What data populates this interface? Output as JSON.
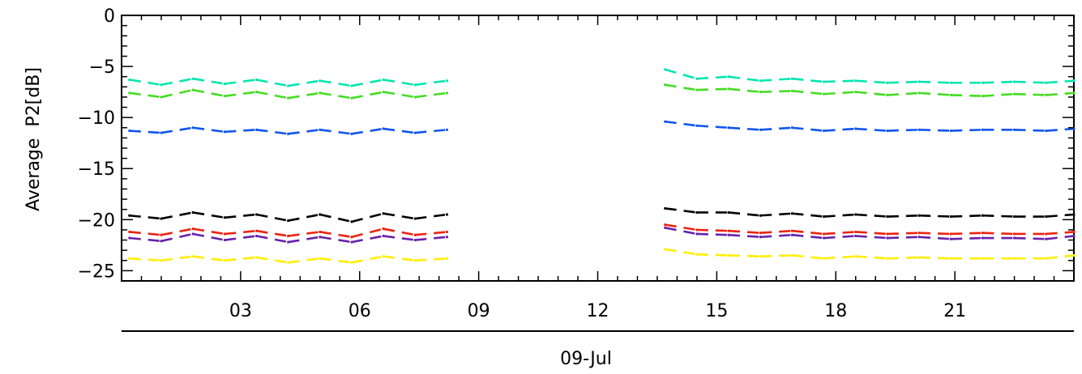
{
  "chart_data": {
    "type": "line",
    "title": "",
    "xlabel": "09-Jul",
    "ylabel": "Average  P2[dB]",
    "xunit": "hour of day",
    "xlim": [
      0,
      24
    ],
    "ylim": [
      -26,
      0
    ],
    "xticks": [
      3,
      6,
      9,
      12,
      15,
      18,
      21
    ],
    "xtick_labels": [
      "03",
      "06",
      "09",
      "12",
      "15",
      "18",
      "21"
    ],
    "yticks": [
      0,
      -5,
      -10,
      -15,
      -20,
      -25
    ],
    "ytick_labels": [
      "0",
      "-5",
      "-10",
      "-15",
      "-20",
      "-25"
    ],
    "grid": false,
    "legend": "none",
    "series": [
      {
        "color": "#00e6b0",
        "x": [
          0.2,
          1.0,
          1.8,
          2.6,
          3.4,
          4.2,
          5.0,
          5.8,
          6.6,
          7.4,
          8.2,
          13.7,
          14.5,
          15.3,
          16.1,
          16.9,
          17.7,
          18.5,
          19.3,
          20.1,
          20.9,
          21.7,
          22.5,
          23.3,
          24.0
        ],
        "y": [
          -6.3,
          -6.8,
          -6.2,
          -6.7,
          -6.3,
          -6.9,
          -6.4,
          -6.9,
          -6.3,
          -6.8,
          -6.4,
          -5.3,
          -6.2,
          -6.0,
          -6.4,
          -6.2,
          -6.5,
          -6.4,
          -6.6,
          -6.5,
          -6.6,
          -6.6,
          -6.5,
          -6.6,
          -6.4
        ]
      },
      {
        "color": "#44dd22",
        "x": [
          0.2,
          1.0,
          1.8,
          2.6,
          3.4,
          4.2,
          5.0,
          5.8,
          6.6,
          7.4,
          8.2,
          13.7,
          14.5,
          15.3,
          16.1,
          16.9,
          17.7,
          18.5,
          19.3,
          20.1,
          20.9,
          21.7,
          22.5,
          23.3,
          24.0
        ],
        "y": [
          -7.6,
          -8.0,
          -7.3,
          -7.9,
          -7.5,
          -8.1,
          -7.6,
          -8.1,
          -7.5,
          -8.0,
          -7.6,
          -6.8,
          -7.3,
          -7.2,
          -7.5,
          -7.4,
          -7.7,
          -7.5,
          -7.8,
          -7.6,
          -7.8,
          -7.9,
          -7.7,
          -7.8,
          -7.6
        ]
      },
      {
        "color": "#1155ee",
        "x": [
          0.2,
          1.0,
          1.8,
          2.6,
          3.4,
          4.2,
          5.0,
          5.8,
          6.6,
          7.4,
          8.2,
          13.7,
          14.5,
          15.3,
          16.1,
          16.9,
          17.7,
          18.5,
          19.3,
          20.1,
          20.9,
          21.7,
          22.5,
          23.3,
          24.0
        ],
        "y": [
          -11.3,
          -11.5,
          -11.0,
          -11.4,
          -11.2,
          -11.6,
          -11.2,
          -11.6,
          -11.1,
          -11.5,
          -11.2,
          -10.4,
          -10.8,
          -11.0,
          -11.2,
          -11.0,
          -11.3,
          -11.1,
          -11.3,
          -11.2,
          -11.3,
          -11.2,
          -11.2,
          -11.3,
          -11.1
        ]
      },
      {
        "color": "#000000",
        "x": [
          0.2,
          1.0,
          1.8,
          2.6,
          3.4,
          4.2,
          5.0,
          5.8,
          6.6,
          7.4,
          8.2,
          13.7,
          14.5,
          15.3,
          16.1,
          16.9,
          17.7,
          18.5,
          19.3,
          20.1,
          20.9,
          21.7,
          22.5,
          23.3,
          24.0
        ],
        "y": [
          -19.6,
          -19.9,
          -19.3,
          -19.8,
          -19.5,
          -20.1,
          -19.5,
          -20.2,
          -19.4,
          -19.9,
          -19.5,
          -18.9,
          -19.3,
          -19.3,
          -19.6,
          -19.4,
          -19.7,
          -19.5,
          -19.7,
          -19.6,
          -19.7,
          -19.6,
          -19.7,
          -19.7,
          -19.5
        ]
      },
      {
        "color": "#ee2211",
        "x": [
          0.2,
          1.0,
          1.8,
          2.6,
          3.4,
          4.2,
          5.0,
          5.8,
          6.6,
          7.4,
          8.2,
          13.7,
          14.5,
          15.3,
          16.1,
          16.9,
          17.7,
          18.5,
          19.3,
          20.1,
          20.9,
          21.7,
          22.5,
          23.3,
          24.0
        ],
        "y": [
          -21.2,
          -21.5,
          -20.9,
          -21.4,
          -21.1,
          -21.6,
          -21.2,
          -21.7,
          -20.9,
          -21.5,
          -21.2,
          -20.5,
          -21.0,
          -21.1,
          -21.3,
          -21.1,
          -21.4,
          -21.2,
          -21.4,
          -21.3,
          -21.4,
          -21.3,
          -21.4,
          -21.4,
          -21.2
        ]
      },
      {
        "color": "#6622aa",
        "x": [
          0.2,
          1.0,
          1.8,
          2.6,
          3.4,
          4.2,
          5.0,
          5.8,
          6.6,
          7.4,
          8.2,
          13.7,
          14.5,
          15.3,
          16.1,
          16.9,
          17.7,
          18.5,
          19.3,
          20.1,
          20.9,
          21.7,
          22.5,
          23.3,
          24.0
        ],
        "y": [
          -21.8,
          -22.1,
          -21.4,
          -22.0,
          -21.6,
          -22.2,
          -21.7,
          -22.2,
          -21.6,
          -22.0,
          -21.7,
          -20.8,
          -21.4,
          -21.5,
          -21.7,
          -21.5,
          -21.8,
          -21.6,
          -21.8,
          -21.7,
          -21.9,
          -21.8,
          -21.8,
          -21.9,
          -21.6
        ]
      },
      {
        "color": "#ffee00",
        "x": [
          0.2,
          1.0,
          1.8,
          2.6,
          3.4,
          4.2,
          5.0,
          5.8,
          6.6,
          7.4,
          8.2,
          13.7,
          14.5,
          15.3,
          16.1,
          16.9,
          17.7,
          18.5,
          19.3,
          20.1,
          20.9,
          21.7,
          22.5,
          23.3,
          24.0
        ],
        "y": [
          -23.8,
          -24.0,
          -23.6,
          -24.0,
          -23.7,
          -24.2,
          -23.8,
          -24.2,
          -23.6,
          -24.0,
          -23.8,
          -22.9,
          -23.4,
          -23.5,
          -23.6,
          -23.5,
          -23.8,
          -23.6,
          -23.8,
          -23.7,
          -23.8,
          -23.8,
          -23.8,
          -23.8,
          -23.5
        ]
      }
    ]
  }
}
